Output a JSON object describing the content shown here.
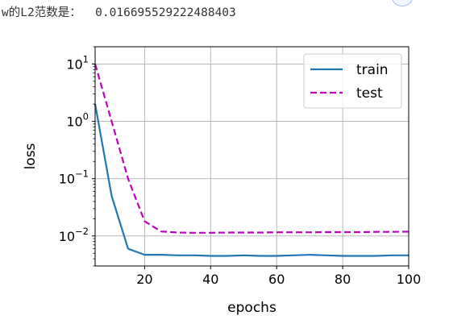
{
  "output": {
    "label": "w的L2范数是：",
    "value": "0.016695529222488403"
  },
  "chart_data": {
    "type": "line",
    "xlabel": "epochs",
    "ylabel": "loss",
    "xlim": [
      5,
      100
    ],
    "ylim": [
      0.003,
      20
    ],
    "yscale": "log",
    "grid": true,
    "legend_position": "top-right",
    "x_ticks": [
      "20",
      "40",
      "60",
      "80",
      "100"
    ],
    "y_ticks": [
      {
        "value": 10,
        "base": "10",
        "exp": "1"
      },
      {
        "value": 1,
        "base": "10",
        "exp": "0"
      },
      {
        "value": 0.1,
        "base": "10",
        "exp": "−1"
      },
      {
        "value": 0.01,
        "base": "10",
        "exp": "−2"
      }
    ],
    "x": [
      5,
      10,
      15,
      20,
      25,
      30,
      35,
      40,
      45,
      50,
      55,
      60,
      65,
      70,
      75,
      80,
      85,
      90,
      95,
      100
    ],
    "series": [
      {
        "name": "train",
        "color": "#1f77b4",
        "dash": "solid",
        "values": [
          2.0,
          0.05,
          0.006,
          0.0047,
          0.0047,
          0.0046,
          0.0046,
          0.0045,
          0.0045,
          0.0046,
          0.0045,
          0.0045,
          0.0046,
          0.0047,
          0.0046,
          0.0045,
          0.0045,
          0.0045,
          0.0046,
          0.0046
        ]
      },
      {
        "name": "test",
        "color": "#bf00bf",
        "dash": "dashed",
        "values": [
          10.0,
          1.0,
          0.1,
          0.018,
          0.012,
          0.0115,
          0.0114,
          0.0114,
          0.0115,
          0.0115,
          0.0115,
          0.0116,
          0.0116,
          0.0116,
          0.0117,
          0.0117,
          0.0117,
          0.0118,
          0.0118,
          0.0119
        ]
      }
    ]
  }
}
